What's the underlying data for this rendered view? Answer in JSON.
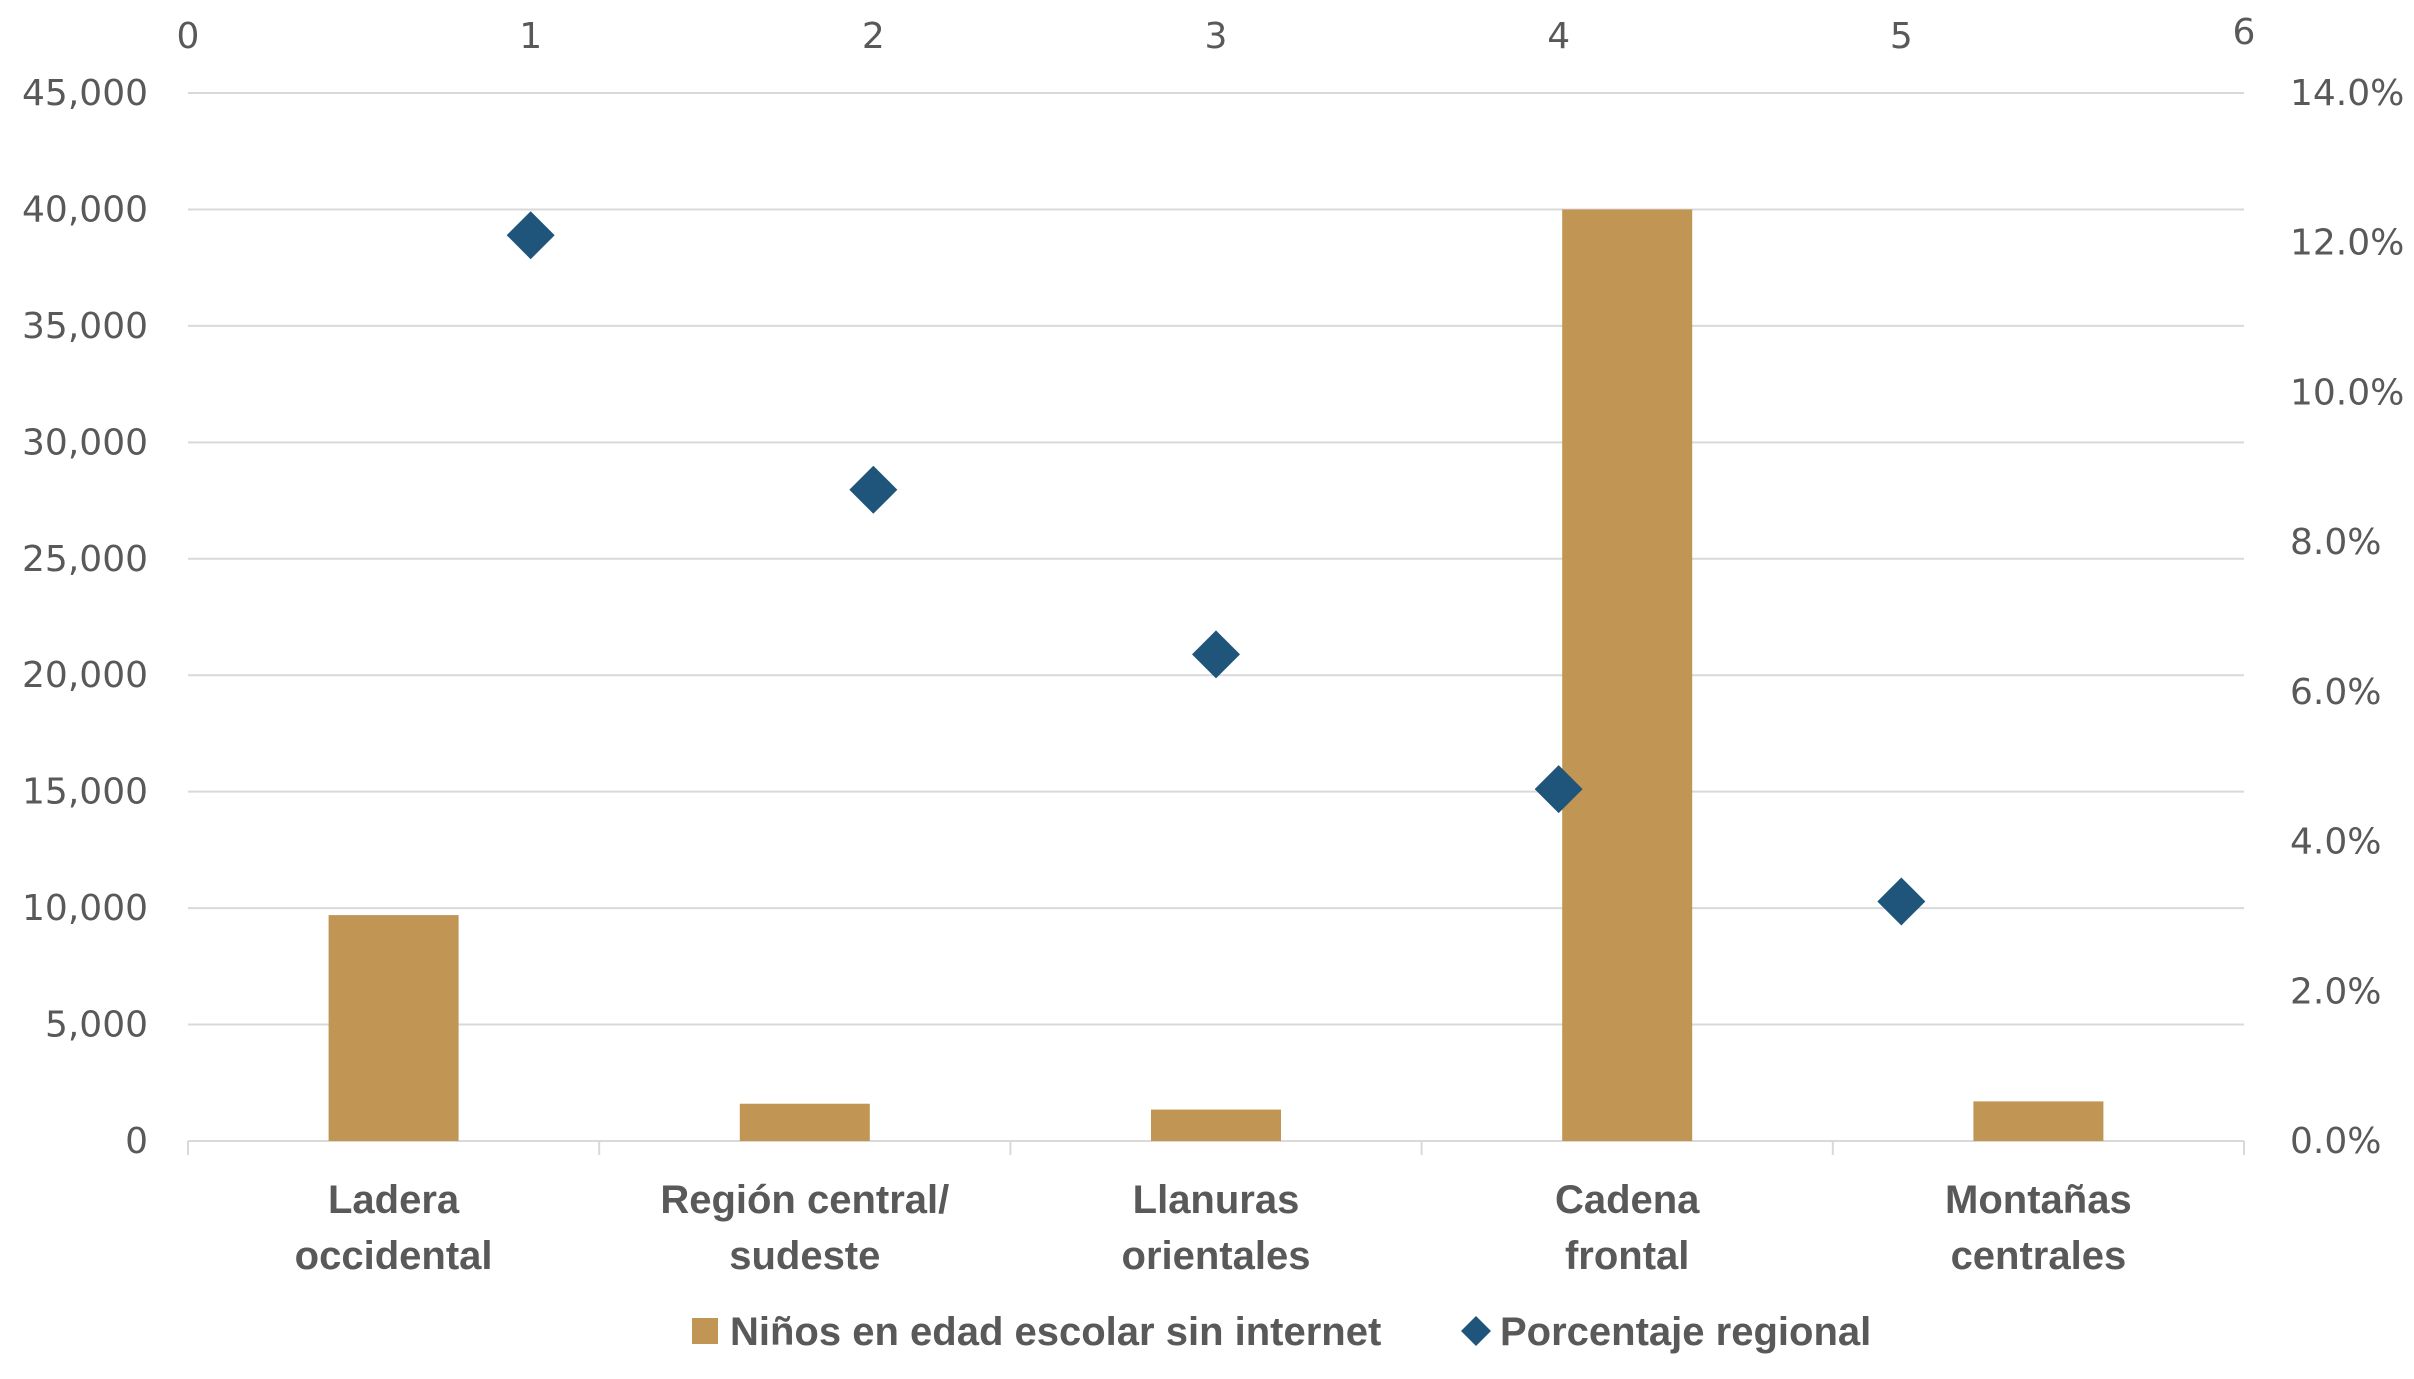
{
  "chart_data": {
    "type": "bar",
    "categories": [
      [
        "Ladera",
        "occidental"
      ],
      [
        "Región central/",
        "sudeste"
      ],
      [
        "Llanuras",
        "orientales"
      ],
      [
        "Cadena",
        "frontal"
      ],
      [
        "Montañas",
        "centrales"
      ]
    ],
    "series": [
      {
        "name": "Niños en edad escolar sin internet",
        "type": "bar",
        "axis": "left",
        "color": "#C19553",
        "values": [
          9700,
          1600,
          1350,
          40000,
          1700
        ]
      },
      {
        "name": "Porcentaje regional",
        "type": "scatter",
        "axis": "right",
        "marker": "diamond",
        "color": "#1F557B",
        "x": [
          1,
          2,
          3,
          4,
          5
        ],
        "values": [
          0.121,
          0.087,
          0.065,
          0.047,
          0.032
        ]
      }
    ],
    "y_left": {
      "ylim": [
        0,
        45000
      ],
      "ticks": [
        "0",
        "5,000",
        "10,000",
        "15,000",
        "20,000",
        "25,000",
        "30,000",
        "35,000",
        "40,000",
        "45,000"
      ]
    },
    "y_right": {
      "ylim": [
        0,
        0.14
      ],
      "ticks": [
        "0.0%",
        "2.0%",
        "4.0%",
        "6.0%",
        "8.0%",
        "10.0%",
        "12.0%",
        "14.0%"
      ]
    },
    "x_top": {
      "xlim": [
        0,
        6
      ],
      "ticks": [
        "0",
        "1",
        "2",
        "3",
        "4",
        "5",
        "6"
      ]
    },
    "grid": true,
    "legend_position": "bottom",
    "colors": {
      "bar": "#C19553",
      "marker": "#1F557B",
      "grid": "#D9D9D9",
      "text": "#595959"
    }
  }
}
